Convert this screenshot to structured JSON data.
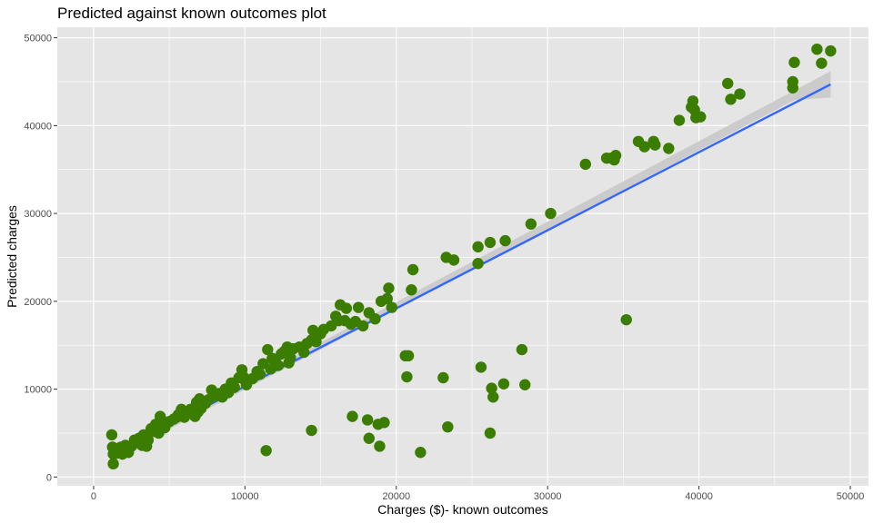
{
  "chart_data": {
    "type": "scatter",
    "title": "Predicted against known outcomes plot",
    "xlabel": "Charges ($)- known outcomes",
    "ylabel": "Predicted charges",
    "xlim": [
      -2400,
      51200
    ],
    "ylim": [
      -1000,
      51200
    ],
    "x_ticks": [
      0,
      10000,
      20000,
      30000,
      40000,
      50000
    ],
    "y_ticks": [
      0,
      10000,
      20000,
      30000,
      40000,
      50000
    ],
    "grid": true,
    "colors": {
      "panel": "#e5e5e5",
      "grid": "#ffffff",
      "points": "#3a7d00",
      "fit_line": "#3366ff",
      "confidence_band": "#c8c8c8"
    },
    "series": [
      {
        "points": [
          [
            1200,
            4800
          ],
          [
            1250,
            3400
          ],
          [
            1300,
            2600
          ],
          [
            1300,
            1500
          ],
          [
            1500,
            2700
          ],
          [
            1800,
            3400
          ],
          [
            1900,
            2600
          ],
          [
            2000,
            2900
          ],
          [
            2100,
            3600
          ],
          [
            2300,
            2800
          ],
          [
            2500,
            3500
          ],
          [
            2700,
            4200
          ],
          [
            2900,
            3900
          ],
          [
            3000,
            4400
          ],
          [
            3200,
            3600
          ],
          [
            3300,
            4800
          ],
          [
            3500,
            3500
          ],
          [
            3600,
            4200
          ],
          [
            3800,
            5500
          ],
          [
            4000,
            5200
          ],
          [
            4100,
            6000
          ],
          [
            4300,
            5000
          ],
          [
            4400,
            6900
          ],
          [
            4600,
            6300
          ],
          [
            4700,
            5600
          ],
          [
            5000,
            6300
          ],
          [
            5300,
            6600
          ],
          [
            5600,
            7100
          ],
          [
            5800,
            7700
          ],
          [
            6000,
            6800
          ],
          [
            6200,
            7300
          ],
          [
            6400,
            7700
          ],
          [
            6700,
            6900
          ],
          [
            6800,
            8500
          ],
          [
            7000,
            8900
          ],
          [
            7100,
            7800
          ],
          [
            7400,
            8400
          ],
          [
            7600,
            8800
          ],
          [
            7800,
            9900
          ],
          [
            8000,
            9200
          ],
          [
            8300,
            9500
          ],
          [
            8500,
            9100
          ],
          [
            8700,
            10000
          ],
          [
            8900,
            9600
          ],
          [
            9100,
            10700
          ],
          [
            9300,
            10200
          ],
          [
            9600,
            11300
          ],
          [
            9800,
            12200
          ],
          [
            10000,
            11000
          ],
          [
            10100,
            10500
          ],
          [
            10500,
            11200
          ],
          [
            10800,
            12000
          ],
          [
            11000,
            11700
          ],
          [
            11200,
            12900
          ],
          [
            11500,
            14500
          ],
          [
            11700,
            12300
          ],
          [
            11800,
            13500
          ],
          [
            12000,
            13300
          ],
          [
            12200,
            12700
          ],
          [
            12400,
            14000
          ],
          [
            12600,
            14300
          ],
          [
            12800,
            14800
          ],
          [
            13000,
            13600
          ],
          [
            13200,
            14600
          ],
          [
            13600,
            14800
          ],
          [
            13900,
            14200
          ],
          [
            14100,
            15200
          ],
          [
            14400,
            15600
          ],
          [
            14500,
            16700
          ],
          [
            14700,
            15400
          ],
          [
            15000,
            16300
          ],
          [
            15200,
            16800
          ],
          [
            15700,
            17200
          ],
          [
            16000,
            18300
          ],
          [
            16200,
            17800
          ],
          [
            16300,
            19600
          ],
          [
            16700,
            19200
          ],
          [
            17000,
            17400
          ],
          [
            17300,
            17700
          ],
          [
            17500,
            19300
          ],
          [
            17800,
            17200
          ],
          [
            18200,
            18700
          ],
          [
            18600,
            18000
          ],
          [
            19000,
            20000
          ],
          [
            19400,
            20300
          ],
          [
            19500,
            21500
          ],
          [
            19700,
            19300
          ],
          [
            20600,
            13800
          ],
          [
            20800,
            13800
          ],
          [
            20700,
            11400
          ],
          [
            21000,
            21300
          ],
          [
            21100,
            23600
          ],
          [
            23100,
            11300
          ],
          [
            23300,
            25000
          ],
          [
            23400,
            5700
          ],
          [
            23800,
            24700
          ],
          [
            25400,
            26200
          ],
          [
            25400,
            24300
          ],
          [
            25600,
            12500
          ],
          [
            26200,
            26700
          ],
          [
            26200,
            5000
          ],
          [
            26300,
            10100
          ],
          [
            26400,
            9100
          ],
          [
            27200,
            26900
          ],
          [
            27100,
            10600
          ],
          [
            28300,
            14500
          ],
          [
            28500,
            10500
          ],
          [
            28900,
            28800
          ],
          [
            30200,
            30000
          ],
          [
            32500,
            35600
          ],
          [
            33900,
            36300
          ],
          [
            34200,
            36300
          ],
          [
            34400,
            36100
          ],
          [
            34500,
            36600
          ],
          [
            35200,
            17900
          ],
          [
            36000,
            38200
          ],
          [
            36400,
            37600
          ],
          [
            37000,
            38200
          ],
          [
            37100,
            37800
          ],
          [
            38000,
            37400
          ],
          [
            38700,
            40600
          ],
          [
            39500,
            42100
          ],
          [
            39600,
            42800
          ],
          [
            39700,
            41800
          ],
          [
            39800,
            40900
          ],
          [
            40100,
            41000
          ],
          [
            41900,
            44800
          ],
          [
            42100,
            43000
          ],
          [
            42700,
            43600
          ],
          [
            46200,
            45000
          ],
          [
            46200,
            44300
          ],
          [
            46300,
            47200
          ],
          [
            47800,
            48700
          ],
          [
            48100,
            47100
          ],
          [
            48700,
            48500
          ],
          [
            11400,
            3000
          ],
          [
            14400,
            5300
          ],
          [
            17100,
            6900
          ],
          [
            18200,
            4400
          ],
          [
            18100,
            6500
          ],
          [
            18800,
            6000
          ],
          [
            18900,
            3500
          ],
          [
            19200,
            6200
          ],
          [
            21600,
            2800
          ],
          [
            3400,
            4000
          ],
          [
            5500,
            6800
          ],
          [
            6900,
            7400
          ],
          [
            9900,
            11400
          ],
          [
            12900,
            13000
          ],
          [
            16600,
            17800
          ]
        ]
      }
    ],
    "fit_line": {
      "from": [
        1200,
        2500
      ],
      "to": [
        48700,
        44700
      ],
      "band_start": [
        2100,
        3000
      ],
      "band_end": [
        46300,
        43000
      ]
    }
  }
}
